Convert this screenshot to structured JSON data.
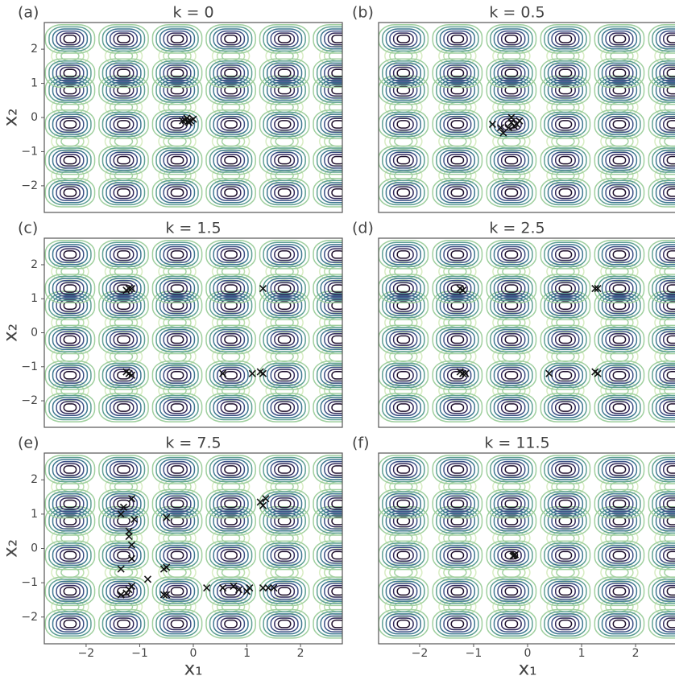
{
  "chart_data": [
    {
      "type": "scatter",
      "label": "(a)",
      "title": "k = 0",
      "ylabel": "x₂",
      "x": [
        -0.15,
        -0.1,
        -0.05,
        -0.2,
        0.0,
        -0.12,
        -0.08
      ],
      "y": [
        -0.08,
        -0.12,
        -0.1,
        -0.1,
        -0.05,
        -0.02,
        -0.15
      ],
      "xlim": [
        -2.78,
        2.78
      ],
      "ylim": [
        -2.78,
        2.78
      ],
      "yticks": [
        {
          "value": -2,
          "label": "−2"
        },
        {
          "value": -1,
          "label": "−1"
        },
        0,
        1,
        2
      ]
    },
    {
      "type": "scatter",
      "label": "(b)",
      "title": "k = 0.5",
      "x": [
        -0.65,
        -0.5,
        -0.3,
        -0.25,
        -0.2,
        -0.45,
        -0.35,
        -0.15,
        -0.3
      ],
      "y": [
        -0.2,
        -0.3,
        -0.15,
        -0.25,
        -0.2,
        -0.45,
        -0.3,
        -0.1,
        0.0
      ],
      "xlim": [
        -2.76,
        2.76
      ],
      "ylim": [
        -2.78,
        2.78
      ]
    },
    {
      "type": "scatter",
      "label": "(c)",
      "title": "k = 1.5",
      "ylabel": "x₂",
      "x": [
        -1.2,
        -1.25,
        -1.15,
        1.3,
        -1.2,
        -1.25,
        -1.15,
        0.55,
        1.1,
        1.3,
        1.25
      ],
      "y": [
        1.3,
        1.25,
        1.3,
        1.3,
        -1.2,
        -1.15,
        -1.25,
        -1.2,
        -1.2,
        -1.2,
        -1.15
      ],
      "xlim": [
        -2.78,
        2.78
      ],
      "ylim": [
        -2.78,
        2.78
      ],
      "yticks": [
        {
          "value": -2,
          "label": "−2"
        },
        {
          "value": -1,
          "label": "−1"
        },
        0,
        1,
        2
      ]
    },
    {
      "type": "scatter",
      "label": "(d)",
      "title": "k = 2.5",
      "x": [
        -1.25,
        -1.2,
        1.3,
        1.25,
        -1.2,
        -1.25,
        -1.15,
        0.4,
        1.3,
        1.25
      ],
      "y": [
        1.3,
        1.25,
        1.3,
        1.3,
        -1.2,
        -1.15,
        -1.2,
        -1.2,
        -1.2,
        -1.15
      ],
      "xlim": [
        -2.76,
        2.76
      ],
      "ylim": [
        -2.78,
        2.78
      ]
    },
    {
      "type": "scatter",
      "label": "(e)",
      "title": "k = 7.5",
      "ylabel": "x₂",
      "xlabel": "x₁",
      "x": [
        -1.15,
        -1.3,
        -1.35,
        -1.1,
        -1.2,
        -1.15,
        -1.15,
        -1.35,
        -1.2,
        -1.15,
        -1.35,
        -1.25,
        -1.2,
        -0.5,
        -0.5,
        -0.55,
        -0.5,
        -0.55,
        -0.85,
        0.25,
        0.55,
        0.75,
        0.85,
        1.0,
        1.05,
        1.3,
        1.4,
        1.5,
        1.25,
        1.3,
        1.35
      ],
      "y": [
        1.45,
        1.2,
        1.0,
        0.85,
        0.5,
        0.1,
        -0.3,
        -0.6,
        -1.2,
        -1.1,
        -1.35,
        -1.3,
        0.35,
        0.9,
        -0.55,
        -0.6,
        -1.35,
        -1.35,
        -0.9,
        -1.15,
        -1.15,
        -1.1,
        -1.2,
        -1.25,
        -1.15,
        -1.15,
        -1.15,
        -1.15,
        1.35,
        1.25,
        1.45
      ],
      "xlim": [
        -2.78,
        2.78
      ],
      "ylim": [
        -2.78,
        2.78
      ],
      "xticks": [
        {
          "value": -2,
          "label": "−2"
        },
        {
          "value": -1,
          "label": "−1"
        },
        0,
        1,
        2
      ],
      "yticks": [
        {
          "value": -2,
          "label": "−2"
        },
        {
          "value": -1,
          "label": "−1"
        },
        0,
        1,
        2
      ]
    },
    {
      "type": "scatter",
      "label": "(f)",
      "title": "k = 11.5",
      "xlabel": "x₁",
      "x": [
        -0.25,
        -0.27,
        -0.23
      ],
      "y": [
        -0.2,
        -0.22,
        -0.18
      ],
      "xlim": [
        -2.76,
        2.76
      ],
      "ylim": [
        -2.78,
        2.78
      ],
      "xticks": [
        {
          "value": -2,
          "label": "−2"
        },
        {
          "value": -1,
          "label": "−1"
        },
        0,
        1,
        2
      ]
    }
  ]
}
